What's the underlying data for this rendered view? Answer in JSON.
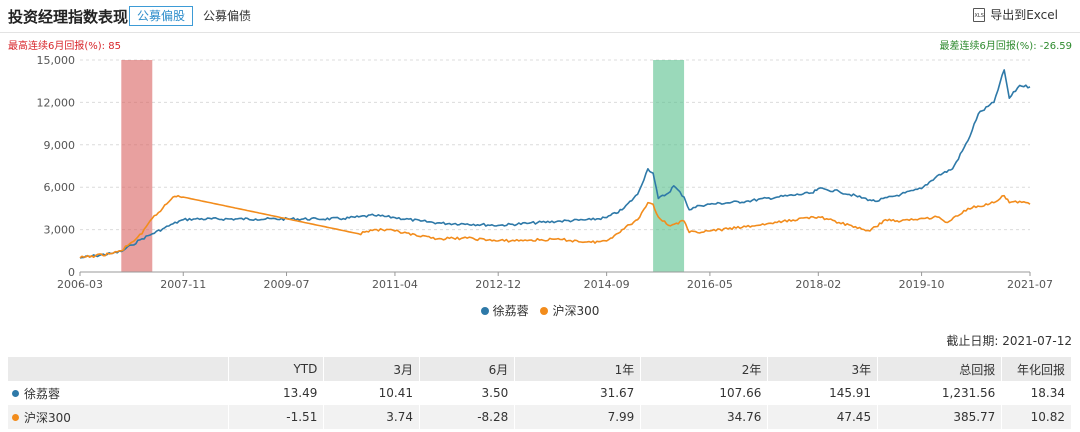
{
  "header": {
    "title": "投资经理指数表现",
    "tab_active": "公募偏股",
    "tab_inactive": "公募偏债",
    "export_label": "导出到Excel",
    "export_icon": "xls-file-icon"
  },
  "notes": {
    "best": "最高连续6月回报(%): 85",
    "worst": "最差连续6月回报(%): -26.59"
  },
  "colors": {
    "manager": "#2e79a8",
    "index": "#f28c1c",
    "best_band": "#d9605f",
    "worst_band": "#56c08c",
    "grid": "#dcdcdc"
  },
  "chart_data": {
    "type": "line",
    "x_ticks": [
      "2006-03",
      "2007-11",
      "2009-07",
      "2011-04",
      "2012-12",
      "2014-09",
      "2016-05",
      "2018-02",
      "2019-10",
      "2021-07"
    ],
    "y_ticks": [
      "0",
      "3,000",
      "6,000",
      "9,000",
      "12,000",
      "15,000"
    ],
    "ylim": [
      0,
      15000
    ],
    "xlim": [
      "2006-03",
      "2021-07"
    ],
    "best_period": [
      "2006-11",
      "2007-05"
    ],
    "worst_period": [
      "2015-06",
      "2015-12"
    ],
    "series": [
      {
        "name": "徐荔蓉",
        "points": [
          [
            "2006-03",
            1000
          ],
          [
            "2006-06",
            1150
          ],
          [
            "2006-09",
            1300
          ],
          [
            "2006-11",
            1450
          ],
          [
            "2007-01",
            1900
          ],
          [
            "2007-03",
            2350
          ],
          [
            "2007-05",
            2700
          ],
          [
            "2007-07",
            3050
          ],
          [
            "2007-09",
            3400
          ],
          [
            "2007-11",
            3700
          ],
          [
            "2008-01",
            3750
          ],
          [
            "2009-01",
            3750
          ],
          [
            "2010-01",
            3750
          ],
          [
            "2010-06",
            3780
          ],
          [
            "2010-09",
            3900
          ],
          [
            "2010-12",
            4000
          ],
          [
            "2011-04",
            3850
          ],
          [
            "2011-09",
            3600
          ],
          [
            "2012-01",
            3450
          ],
          [
            "2012-06",
            3400
          ],
          [
            "2012-12",
            3300
          ],
          [
            "2013-06",
            3450
          ],
          [
            "2013-12",
            3600
          ],
          [
            "2014-06",
            3700
          ],
          [
            "2014-09",
            3850
          ],
          [
            "2014-12",
            4400
          ],
          [
            "2015-03",
            5500
          ],
          [
            "2015-05",
            7300
          ],
          [
            "2015-06",
            7000
          ],
          [
            "2015-07",
            5200
          ],
          [
            "2015-09",
            5600
          ],
          [
            "2015-10",
            6100
          ],
          [
            "2015-12",
            5300
          ],
          [
            "2016-01",
            4400
          ],
          [
            "2016-03",
            4700
          ],
          [
            "2016-05",
            4800
          ],
          [
            "2016-12",
            5000
          ],
          [
            "2017-06",
            5300
          ],
          [
            "2018-01",
            5600
          ],
          [
            "2018-02",
            5900
          ],
          [
            "2018-06",
            5700
          ],
          [
            "2018-12",
            5100
          ],
          [
            "2019-01",
            5000
          ],
          [
            "2019-06",
            5500
          ],
          [
            "2019-10",
            5900
          ],
          [
            "2020-01",
            6800
          ],
          [
            "2020-04",
            7300
          ],
          [
            "2020-07",
            9300
          ],
          [
            "2020-09",
            11200
          ],
          [
            "2020-12",
            12000
          ],
          [
            "2021-02",
            14300
          ],
          [
            "2021-03",
            12300
          ],
          [
            "2021-05",
            13200
          ],
          [
            "2021-07",
            13100
          ]
        ]
      },
      {
        "name": "沪深300",
        "points": [
          [
            "2006-03",
            1000
          ],
          [
            "2006-06",
            1150
          ],
          [
            "2006-09",
            1300
          ],
          [
            "2006-11",
            1500
          ],
          [
            "2007-01",
            2100
          ],
          [
            "2007-03",
            2700
          ],
          [
            "2007-05",
            3800
          ],
          [
            "2007-07",
            4500
          ],
          [
            "2007-09",
            5300
          ],
          [
            "2007-10",
            5400
          ],
          [
            "2007-11",
            5300
          ],
          [
            "2010-09",
            2700
          ],
          [
            "2010-12",
            3000
          ],
          [
            "2011-04",
            2900
          ],
          [
            "2011-09",
            2500
          ],
          [
            "2012-01",
            2350
          ],
          [
            "2012-06",
            2400
          ],
          [
            "2012-12",
            2200
          ],
          [
            "2013-06",
            2250
          ],
          [
            "2013-12",
            2300
          ],
          [
            "2014-06",
            2100
          ],
          [
            "2014-09",
            2200
          ],
          [
            "2014-12",
            3000
          ],
          [
            "2015-03",
            3700
          ],
          [
            "2015-05",
            4900
          ],
          [
            "2015-06",
            4800
          ],
          [
            "2015-07",
            3900
          ],
          [
            "2015-09",
            3300
          ],
          [
            "2015-12",
            3600
          ],
          [
            "2016-01",
            2800
          ],
          [
            "2016-05",
            2900
          ],
          [
            "2016-12",
            3200
          ],
          [
            "2017-06",
            3500
          ],
          [
            "2018-01",
            3900
          ],
          [
            "2018-02",
            3900
          ],
          [
            "2018-06",
            3500
          ],
          [
            "2018-12",
            2900
          ],
          [
            "2019-03",
            3700
          ],
          [
            "2019-06",
            3600
          ],
          [
            "2019-10",
            3800
          ],
          [
            "2020-01",
            3900
          ],
          [
            "2020-03",
            3500
          ],
          [
            "2020-07",
            4500
          ],
          [
            "2020-12",
            4900
          ],
          [
            "2021-02",
            5400
          ],
          [
            "2021-03",
            4900
          ],
          [
            "2021-05",
            5000
          ],
          [
            "2021-07",
            4800
          ]
        ]
      }
    ]
  },
  "legend": [
    {
      "label": "徐荔蓉",
      "color": "#2e79a8"
    },
    {
      "label": "沪深300",
      "color": "#f28c1c"
    }
  ],
  "as_of": "截止日期: 2021-07-12",
  "table": {
    "headers": [
      "",
      "YTD",
      "3月",
      "6月",
      "1年",
      "2年",
      "3年",
      "总回报",
      "年化回报"
    ],
    "rows": [
      {
        "name": "徐荔蓉",
        "color": "#2e79a8",
        "cells": [
          "13.49",
          "10.41",
          "3.50",
          "31.67",
          "107.66",
          "145.91",
          "1,231.56",
          "18.34"
        ]
      },
      {
        "name": "沪深300",
        "color": "#f28c1c",
        "cells": [
          "-1.51",
          "3.74",
          "-8.28",
          "7.99",
          "34.76",
          "47.45",
          "385.77",
          "10.82"
        ]
      }
    ]
  }
}
